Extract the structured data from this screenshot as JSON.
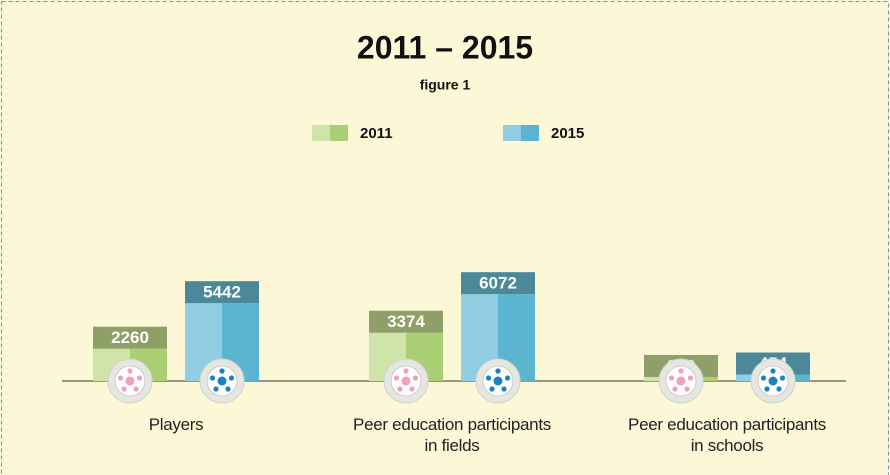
{
  "chart_data": {
    "type": "bar",
    "title": "2011 – 2015",
    "subtitle": "figure 1",
    "categories": [
      "Players",
      "Peer education participants in fields",
      "Peer education participants in schools"
    ],
    "series": [
      {
        "name": "2011",
        "color": "#a9cf72",
        "values": [
          2260,
          3374,
          282
        ]
      },
      {
        "name": "2015",
        "color": "#5bb5d1",
        "values": [
          5442,
          6072,
          454
        ]
      }
    ]
  }
}
